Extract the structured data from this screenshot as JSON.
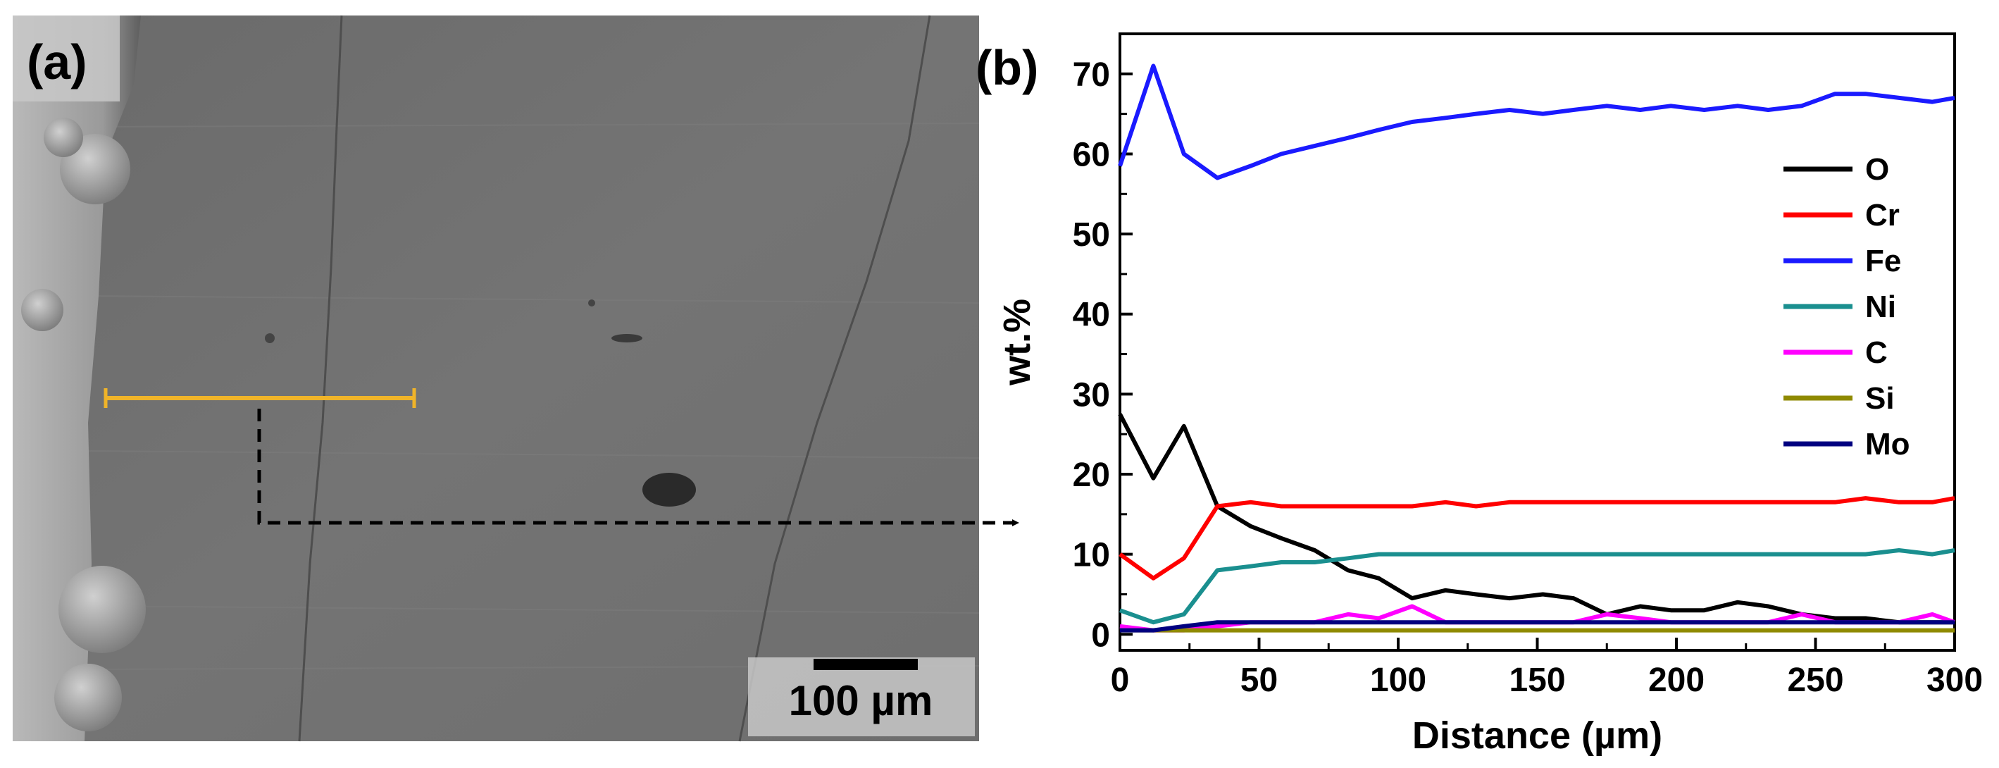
{
  "panel_a": {
    "label": "(a)",
    "scale_bar_text": "100 µm",
    "line_scan_color": "#f0b429"
  },
  "panel_b": {
    "label": "(b)"
  },
  "chart_data": {
    "type": "line",
    "title": "",
    "xlabel": "Distance (µm)",
    "ylabel": "wt.%",
    "xlim": [
      0,
      300
    ],
    "ylim": [
      -2,
      75
    ],
    "xticks": [
      "0",
      "50",
      "100",
      "150",
      "200",
      "250",
      "300"
    ],
    "yticks": [
      "0",
      "10",
      "20",
      "30",
      "40",
      "50",
      "60",
      "70"
    ],
    "legend_position": "right",
    "x": [
      0,
      12,
      23,
      35,
      47,
      58,
      70,
      82,
      93,
      105,
      117,
      128,
      140,
      152,
      163,
      175,
      187,
      198,
      210,
      222,
      233,
      245,
      257,
      268,
      280,
      292,
      300
    ],
    "series": [
      {
        "name": "O",
        "color": "#000000",
        "values": [
          27.5,
          19.5,
          26,
          16,
          13.5,
          12,
          10.5,
          8,
          7,
          4.5,
          5.5,
          5,
          4.5,
          5,
          4.5,
          2.5,
          3.5,
          3,
          3,
          4,
          3.5,
          2.5,
          2,
          2,
          1.5,
          1.5,
          1.5
        ]
      },
      {
        "name": "Cr",
        "color": "#ff0000",
        "values": [
          10,
          7,
          9.5,
          16,
          16.5,
          16,
          16,
          16,
          16,
          16,
          16.5,
          16,
          16.5,
          16.5,
          16.5,
          16.5,
          16.5,
          16.5,
          16.5,
          16.5,
          16.5,
          16.5,
          16.5,
          17,
          16.5,
          16.5,
          17
        ]
      },
      {
        "name": "Fe",
        "color": "#1a1aff",
        "values": [
          58.5,
          71,
          60,
          57,
          58.5,
          60,
          61,
          62,
          63,
          64,
          64.5,
          65,
          65.5,
          65,
          65.5,
          66,
          65.5,
          66,
          65.5,
          66,
          65.5,
          66,
          67.5,
          67.5,
          67,
          66.5,
          67
        ]
      },
      {
        "name": "Ni",
        "color": "#1a8f8f",
        "values": [
          3,
          1.5,
          2.5,
          8,
          8.5,
          9,
          9,
          9.5,
          10,
          10,
          10,
          10,
          10,
          10,
          10,
          10,
          10,
          10,
          10,
          10,
          10,
          10,
          10,
          10,
          10.5,
          10,
          10.5
        ]
      },
      {
        "name": "C",
        "color": "#ff00ff",
        "values": [
          1,
          0.5,
          0.5,
          1,
          1.5,
          1.5,
          1.5,
          2.5,
          2,
          3.5,
          1.5,
          1.5,
          1.5,
          1.5,
          1.5,
          2.5,
          2,
          1.5,
          1.5,
          1.5,
          1.5,
          2.5,
          1.5,
          1.5,
          1.5,
          2.5,
          1.5
        ]
      },
      {
        "name": "Si",
        "color": "#8f8a00",
        "values": [
          0.5,
          0.5,
          0.5,
          0.5,
          0.5,
          0.5,
          0.5,
          0.5,
          0.5,
          0.5,
          0.5,
          0.5,
          0.5,
          0.5,
          0.5,
          0.5,
          0.5,
          0.5,
          0.5,
          0.5,
          0.5,
          0.5,
          0.5,
          0.5,
          0.5,
          0.5,
          0.5
        ]
      },
      {
        "name": "Mo",
        "color": "#000080",
        "values": [
          0.5,
          0.5,
          1,
          1.5,
          1.5,
          1.5,
          1.5,
          1.5,
          1.5,
          1.5,
          1.5,
          1.5,
          1.5,
          1.5,
          1.5,
          1.5,
          1.5,
          1.5,
          1.5,
          1.5,
          1.5,
          1.5,
          1.5,
          1.5,
          1.5,
          1.5,
          1.5
        ]
      }
    ]
  }
}
